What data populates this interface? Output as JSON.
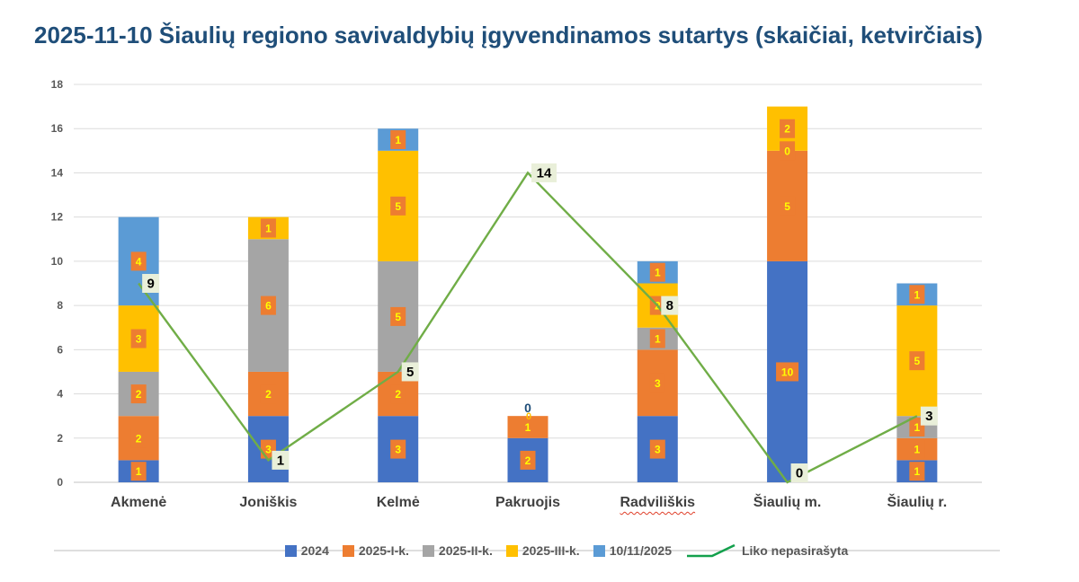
{
  "page": {
    "title": "2025-11-10 Šiaulių regiono savivaldybių įgyvendinamos sutartys (skaičiai, ketvirčiais)",
    "title_color": "#1F4E79"
  },
  "chart_data": {
    "type": "bar",
    "subtype": "stacked-bars-with-line-overlay",
    "title": "2025-11-10 Šiaulių regiono savivaldybių įgyvendinamos sutartys (skaičiai, ketvirčiais)",
    "categories": [
      "Akmenė",
      "Joniškis",
      "Kelmė",
      "Pakruojis",
      "Radviliškis",
      "Šiaulių m.",
      "Šiaulių r."
    ],
    "series": [
      {
        "name": "2024",
        "type": "bar",
        "color": "#4472C4",
        "values": [
          1,
          3,
          3,
          2,
          3,
          10,
          1
        ]
      },
      {
        "name": "2025-I-k.",
        "type": "bar",
        "color": "#ED7D31",
        "values": [
          2,
          2,
          2,
          1,
          3,
          5,
          1
        ]
      },
      {
        "name": "2025-II-k.",
        "type": "bar",
        "color": "#A5A5A5",
        "values": [
          2,
          6,
          5,
          0,
          1,
          0,
          1
        ]
      },
      {
        "name": "2025-III-k.",
        "type": "bar",
        "color": "#FFC000",
        "values": [
          3,
          1,
          5,
          0,
          2,
          2,
          5
        ]
      },
      {
        "name": "10/11/2025",
        "type": "bar",
        "color": "#5B9BD5",
        "values": [
          4,
          0,
          1,
          0,
          1,
          0,
          1
        ]
      },
      {
        "name": "Liko nepasirašyta",
        "type": "line",
        "color": "#70AD47",
        "values": [
          9,
          1,
          5,
          14,
          8,
          0,
          3
        ]
      }
    ],
    "bar_totals": [
      12,
      12,
      16,
      3,
      10,
      17,
      9
    ],
    "ylim": [
      0,
      18
    ],
    "yticks": [
      0,
      2,
      4,
      6,
      8,
      10,
      12,
      14,
      16,
      18
    ],
    "grid": true,
    "legend_position": "bottom",
    "legend_line_marker_color": "#13A04C",
    "axis_color": "#595959",
    "bar_label_style": {
      "background": "#ED7D31",
      "text_color": "#FFFF00"
    },
    "line_label_style": {
      "background": "#E9EFD9",
      "text_color": "#000000"
    },
    "zero_labels": [
      {
        "category": "Pakruojis",
        "category_index": 3,
        "text": "0",
        "position_value": 3,
        "style": "plain-above"
      },
      {
        "category": "Šiaulių m.",
        "category_index": 5,
        "text": "0",
        "position_value": 15,
        "style": "boxed"
      }
    ],
    "spellcheck_underline_category": "Radviliškis"
  }
}
